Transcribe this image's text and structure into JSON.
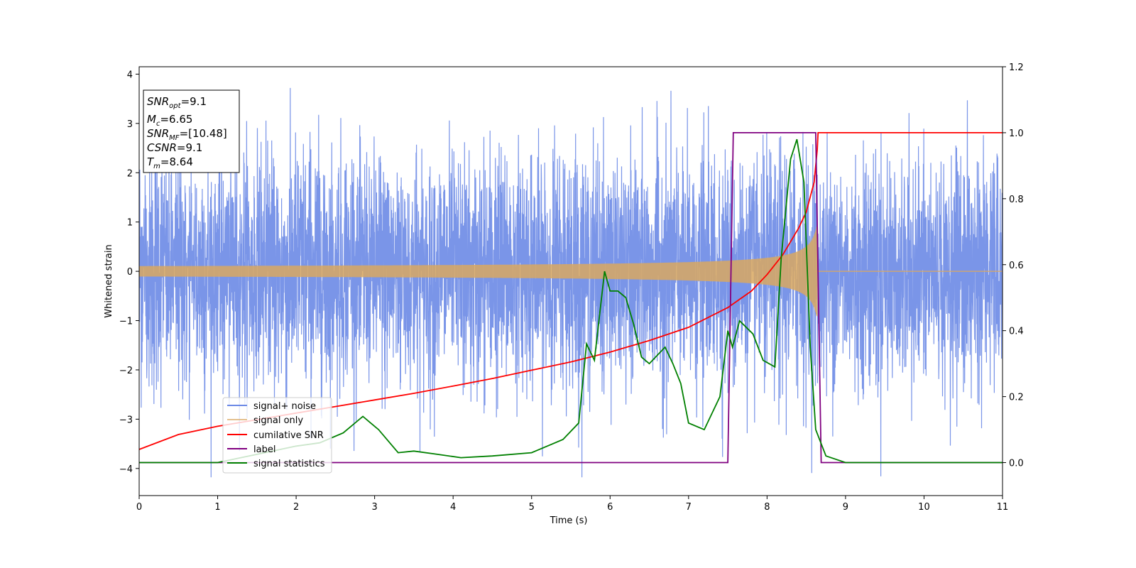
{
  "chart_data": {
    "type": "line",
    "xlabel": "Time (s)",
    "ylabel": "Whitened strain",
    "xlim": [
      0,
      11
    ],
    "ylim_left": [
      -4.55,
      4.15
    ],
    "ylim_right": [
      -0.1,
      1.2
    ],
    "x_ticks": [
      "0",
      "1",
      "2",
      "3",
      "4",
      "5",
      "6",
      "7",
      "8",
      "9",
      "10",
      "11"
    ],
    "y_ticks_left": [
      "4",
      "3",
      "2",
      "1",
      "0",
      "−1",
      "−2",
      "−3",
      "−4"
    ],
    "y_ticks_right": [
      "1.2",
      "1.0",
      "0.8",
      "0.6",
      "0.4",
      "0.2",
      "0.0"
    ],
    "info_box": {
      "snr_opt": {
        "base": "SNR",
        "sub": "opt",
        "value": "=9.1"
      },
      "mc": {
        "base": "M",
        "sub": "c",
        "value": "=6.65"
      },
      "snr_mf": {
        "base": "SNR",
        "sub": "MF",
        "value": "=[10.48]"
      },
      "csnr": {
        "base": "CSNR",
        "sub": "",
        "value": "=9.1"
      },
      "tm": {
        "base": "T",
        "sub": "m",
        "value": "=8.64"
      }
    },
    "legend_placement": "lower-left",
    "grid": false,
    "series": [
      {
        "name": "signal+ noise",
        "axis": "left",
        "color": "#6b89e6",
        "description_values": {
          "x_range": [
            0,
            11
          ],
          "typical_amplitude": 1.7,
          "peak_max": 3.72,
          "peak_min": -4.18
        }
      },
      {
        "name": "signal only",
        "axis": "left",
        "color": "#d9a860",
        "chirp": {
          "start": 0,
          "end": 8.64,
          "amp_start": 0.05,
          "amp_end": 1.0
        }
      },
      {
        "name": "cumilative SNR",
        "axis": "right",
        "color": "#ff0000",
        "x": [
          0,
          0.5,
          1,
          1.5,
          2,
          2.5,
          3,
          3.5,
          4,
          4.5,
          5,
          5.5,
          6,
          6.5,
          7,
          7.5,
          7.8,
          8,
          8.2,
          8.4,
          8.5,
          8.6,
          8.64,
          8.65,
          11
        ],
        "y": [
          0.04,
          0.085,
          0.11,
          0.13,
          0.15,
          0.17,
          0.19,
          0.21,
          0.232,
          0.255,
          0.28,
          0.305,
          0.335,
          0.37,
          0.41,
          0.47,
          0.52,
          0.57,
          0.63,
          0.71,
          0.76,
          0.85,
          0.95,
          1.0,
          1.0
        ]
      },
      {
        "name": "label",
        "axis": "right",
        "color": "#800080",
        "x": [
          0,
          7.5,
          7.57,
          8.62,
          8.69,
          11
        ],
        "y": [
          0,
          0,
          1,
          1,
          0,
          0
        ]
      },
      {
        "name": "signal statistics",
        "axis": "right",
        "color": "#008000",
        "x": [
          0,
          1,
          2,
          2.3,
          2.6,
          2.85,
          2.95,
          3.05,
          3.3,
          3.5,
          3.8,
          4.1,
          4.5,
          5.0,
          5.2,
          5.4,
          5.6,
          5.7,
          5.8,
          5.93,
          6.0,
          6.1,
          6.2,
          6.3,
          6.4,
          6.5,
          6.7,
          6.8,
          6.9,
          7.0,
          7.2,
          7.4,
          7.5,
          7.56,
          7.65,
          7.82,
          7.95,
          8.1,
          8.18,
          8.3,
          8.38,
          8.47,
          8.55,
          8.62,
          8.75,
          9.0,
          11
        ],
        "y": [
          0.0,
          0.0,
          0.05,
          0.06,
          0.09,
          0.14,
          0.12,
          0.1,
          0.03,
          0.035,
          0.025,
          0.015,
          0.02,
          0.03,
          0.05,
          0.07,
          0.12,
          0.36,
          0.31,
          0.58,
          0.52,
          0.52,
          0.5,
          0.42,
          0.32,
          0.3,
          0.35,
          0.3,
          0.24,
          0.12,
          0.1,
          0.2,
          0.4,
          0.35,
          0.43,
          0.39,
          0.31,
          0.29,
          0.62,
          0.92,
          0.98,
          0.85,
          0.35,
          0.1,
          0.02,
          0.0,
          0.0
        ]
      }
    ]
  }
}
